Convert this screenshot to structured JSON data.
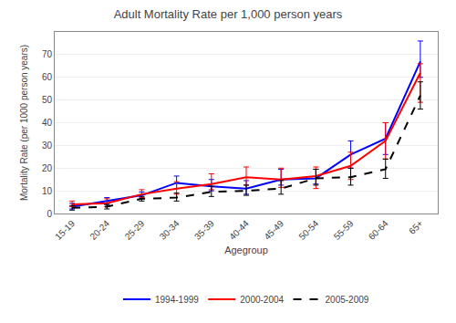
{
  "chart_data": {
    "type": "line",
    "title": "Adult Mortality Rate per 1,000 person years",
    "xlabel": "Agegroup",
    "ylabel": "Mortality Rate (per 1000 person years)",
    "categories": [
      "15-19",
      "20-24",
      "25-29",
      "30-34",
      "35-39",
      "40-44",
      "45-49",
      "50-54",
      "55-59",
      "60-64",
      "65+"
    ],
    "series": [
      {
        "name": "1994-1999",
        "color": "#0000ff",
        "line_style": "solid",
        "values": [
          3.0,
          5.5,
          8.0,
          13.5,
          12.0,
          11.0,
          15.0,
          15.5,
          26.0,
          33.0,
          67.0
        ],
        "ci_low": [
          2.0,
          4.0,
          6.5,
          11.0,
          10.0,
          8.5,
          12.5,
          13.0,
          20.0,
          26.0,
          60.0
        ],
        "ci_high": [
          4.5,
          7.0,
          9.5,
          16.5,
          15.0,
          14.5,
          19.5,
          19.5,
          32.0,
          40.0,
          76.0
        ]
      },
      {
        "name": "2000-2004",
        "color": "#ff0000",
        "line_style": "solid",
        "values": [
          4.0,
          4.5,
          8.5,
          11.0,
          13.0,
          16.0,
          15.0,
          16.5,
          21.0,
          32.0,
          62.0
        ],
        "ci_low": [
          3.0,
          3.0,
          7.0,
          8.5,
          10.5,
          12.5,
          11.5,
          11.0,
          15.0,
          24.0,
          49.0
        ],
        "ci_high": [
          5.5,
          6.5,
          10.5,
          14.0,
          17.5,
          20.5,
          20.0,
          20.5,
          27.0,
          40.0,
          66.0
        ]
      },
      {
        "name": "2005-2009",
        "color": "#000000",
        "line_style": "dashed",
        "values": [
          2.5,
          3.0,
          6.5,
          7.0,
          9.5,
          10.0,
          11.0,
          15.5,
          16.0,
          19.5,
          52.0
        ],
        "ci_low": [
          1.5,
          2.0,
          5.5,
          5.5,
          7.5,
          8.0,
          8.5,
          12.5,
          12.5,
          15.5,
          46.0
        ],
        "ci_high": [
          3.5,
          4.0,
          7.5,
          9.0,
          12.0,
          12.5,
          14.5,
          19.5,
          20.0,
          24.0,
          58.0
        ]
      }
    ],
    "ylim": [
      0,
      80
    ],
    "yticks": [
      0,
      10,
      20,
      30,
      40,
      50,
      60,
      70
    ],
    "grid": true,
    "legend": "bottom"
  }
}
